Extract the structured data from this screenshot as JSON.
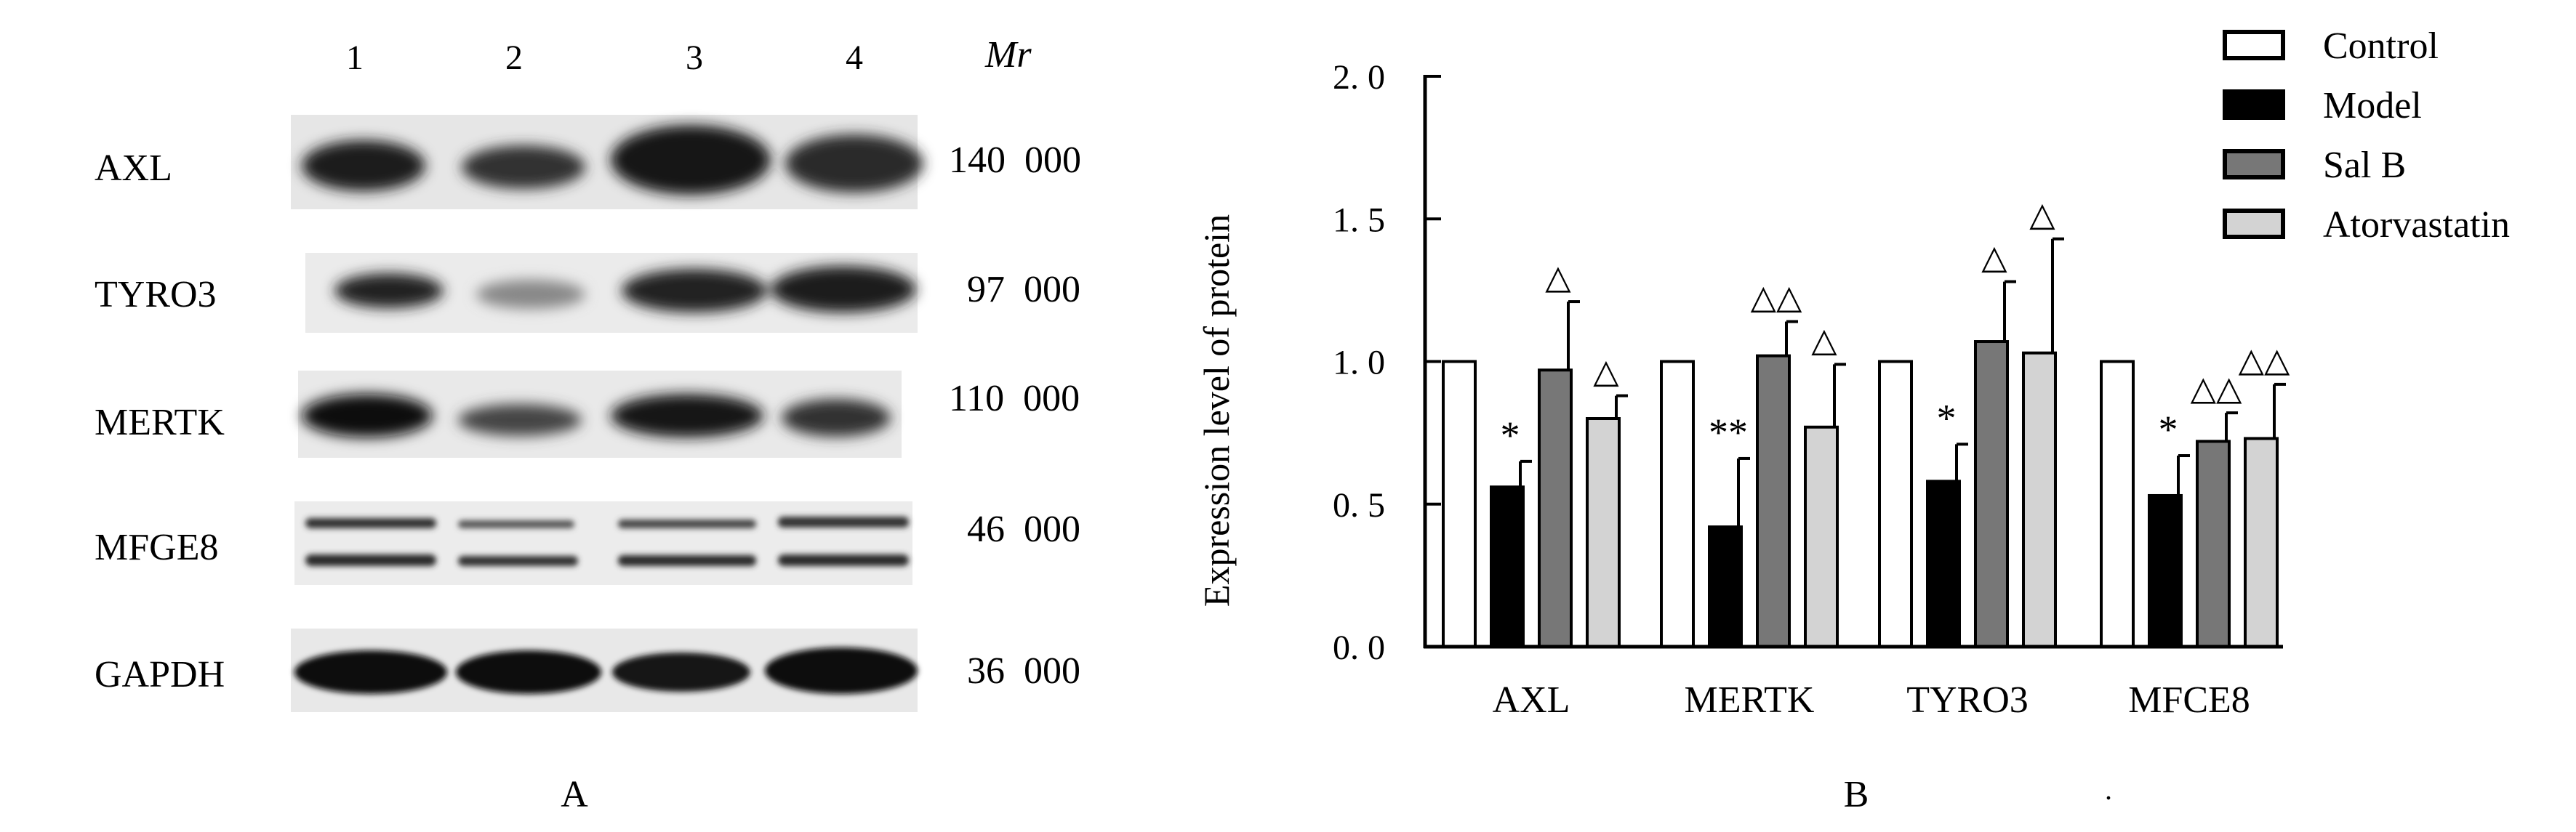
{
  "blot": {
    "lanes": [
      "1",
      "2",
      "3",
      "4"
    ],
    "mr_header": "Mr",
    "rows": [
      {
        "name": "AXL",
        "mr": "140  000"
      },
      {
        "name": "TYRO3",
        "mr": "97  000"
      },
      {
        "name": "MERTK",
        "mr": "110  000"
      },
      {
        "name": "MFGE8",
        "mr": "46  000"
      },
      {
        "name": "GAPDH",
        "mr": "36  000"
      }
    ],
    "panel_label": "A"
  },
  "chart_panel_label": "B",
  "stray_mark": ".",
  "chart_data": {
    "type": "bar",
    "ylabel": "Expression level of protein",
    "ylim": [
      0,
      2.0
    ],
    "yticks": [
      "0. 0",
      "0. 5",
      "1. 0",
      "1. 5",
      "2. 0"
    ],
    "ytick_values": [
      0,
      0.5,
      1.0,
      1.5,
      2.0
    ],
    "categories": [
      "AXL",
      "MERTK",
      "TYRO3",
      "MFCE8"
    ],
    "legend_position": "top-right",
    "series": [
      {
        "name": "Control",
        "color": "#ffffff",
        "values": [
          1.0,
          1.0,
          1.0,
          1.0
        ],
        "errors": [
          0,
          0,
          0,
          0
        ],
        "marks": [
          "",
          "",
          "",
          ""
        ]
      },
      {
        "name": "Model",
        "color": "#000000",
        "values": [
          0.56,
          0.42,
          0.58,
          0.53
        ],
        "errors": [
          0.09,
          0.24,
          0.13,
          0.14
        ],
        "marks": [
          "*",
          "**",
          "*",
          "*"
        ]
      },
      {
        "name": "Sal B",
        "color": "#777777",
        "values": [
          0.97,
          1.02,
          1.07,
          0.72
        ],
        "errors": [
          0.24,
          0.12,
          0.21,
          0.1
        ],
        "marks": [
          "△",
          "△△",
          "△",
          "△△"
        ]
      },
      {
        "name": "Atorvastatin",
        "color": "#d3d3d3",
        "values": [
          0.8,
          0.77,
          1.03,
          0.73
        ],
        "errors": [
          0.08,
          0.22,
          0.4,
          0.19
        ],
        "marks": [
          "△",
          "△",
          "△",
          "△△"
        ]
      }
    ]
  }
}
